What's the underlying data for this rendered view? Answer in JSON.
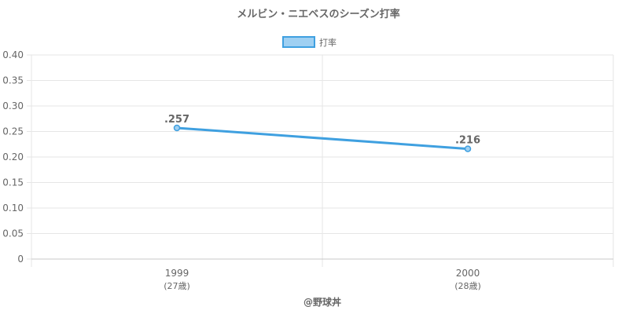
{
  "chart_data": {
    "type": "line",
    "title": "メルビン・ニエベスのシーズン打率",
    "categories": [
      "1999",
      "2000"
    ],
    "category_sublabels": [
      "(27歳)",
      "(28歳)"
    ],
    "series": [
      {
        "name": "打率",
        "values": [
          0.257,
          0.216
        ],
        "labels": [
          ".257",
          ".216"
        ]
      }
    ],
    "yticks": [
      "0",
      "0.05",
      "0.10",
      "0.15",
      "0.20",
      "0.25",
      "0.30",
      "0.35",
      "0.40"
    ],
    "ylim": [
      0,
      0.4
    ],
    "grid": true,
    "legend": "top-center",
    "colors": {
      "line": "#3fa0e0",
      "legend_fill": "#9fd0f2",
      "grid": "#e6e6e6",
      "axis": "#c8c8c8"
    }
  },
  "footer": {
    "credit": "@野球丼"
  }
}
